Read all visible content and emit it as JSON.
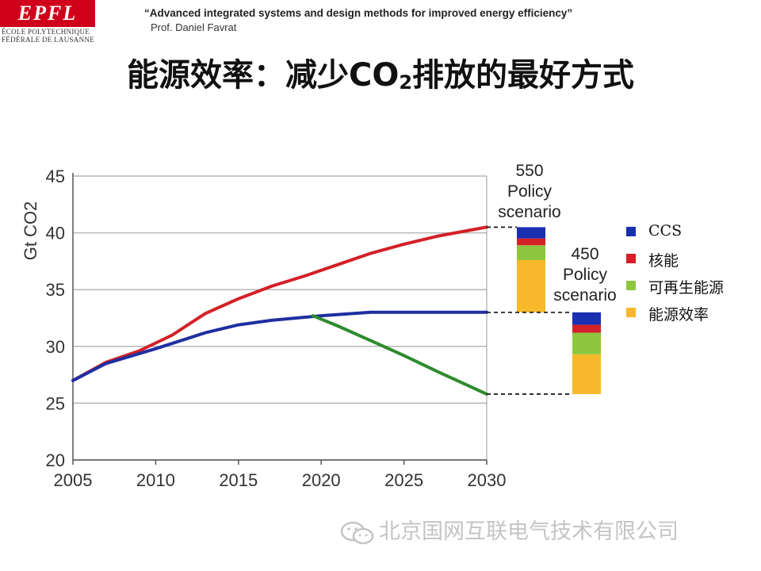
{
  "logo": {
    "text": "EPFL",
    "line1": "ÉCOLE POLYTECHNIQUE",
    "line2": "FÉDÉRALE DE LAUSANNE"
  },
  "header": {
    "quote": "“Advanced integrated systems and design methods for improved energy efficiency”",
    "author": "Prof. Daniel Favrat"
  },
  "title": {
    "before": "能源效率：减少CO",
    "subscript": "2",
    "after": "排放的最好方式"
  },
  "legend": [
    {
      "label": "CCS",
      "color": "#1a2fb0"
    },
    {
      "label": "核能",
      "color": "#d42027"
    },
    {
      "label": "可再生能源",
      "color": "#8dc63f"
    },
    {
      "label": "能源效率",
      "color": "#f7b92b"
    }
  ],
  "watermark": "北京国网互联电气技术有限公司",
  "chart_data": {
    "type": "line",
    "ylabel": "Gt CO2",
    "xlim": [
      2005,
      2030
    ],
    "ylim": [
      20,
      45
    ],
    "xticks": [
      2005,
      2010,
      2015,
      2020,
      2025,
      2030
    ],
    "yticks": [
      20,
      25,
      30,
      35,
      40,
      45
    ],
    "grid": "horizontal",
    "series": [
      {
        "color": "#d42027",
        "x": [
          2005,
          2007,
          2009,
          2011,
          2013,
          2015,
          2017,
          2019,
          2021,
          2023,
          2025,
          2027,
          2030
        ],
        "y": [
          27.0,
          28.6,
          29.6,
          31.0,
          32.9,
          34.2,
          35.3,
          36.2,
          37.2,
          38.2,
          39.0,
          39.7,
          40.5
        ]
      },
      {
        "color": "#1f2fa0",
        "x": [
          2005,
          2007,
          2010,
          2013,
          2015,
          2017,
          2020,
          2023,
          2025,
          2030
        ],
        "y": [
          27.0,
          28.5,
          29.8,
          31.2,
          31.9,
          32.3,
          32.7,
          33.0,
          33.0,
          33.0
        ]
      },
      {
        "color": "#2e8b2e",
        "x": [
          2019.5,
          2021,
          2023,
          2025,
          2027,
          2030
        ],
        "y": [
          32.7,
          31.8,
          30.5,
          29.2,
          27.8,
          25.8
        ]
      }
    ],
    "stacked_bars": [
      {
        "label_lines": [
          "550",
          "Policy",
          "scenario"
        ],
        "total": 40.5,
        "segments": [
          {
            "name": "能源效率",
            "value": 4.6,
            "color": "#f7b92b"
          },
          {
            "name": "可再生能源",
            "value": 1.3,
            "color": "#8dc63f"
          },
          {
            "name": "核能",
            "value": 0.6,
            "color": "#d42027"
          },
          {
            "name": "CCS",
            "value": 1.0,
            "color": "#1a2fb0"
          }
        ]
      },
      {
        "label_lines": [
          "450",
          "Policy",
          "scenario"
        ],
        "total": 33.0,
        "segments": [
          {
            "name": "能源效率",
            "value": 3.5,
            "color": "#f7b92b"
          },
          {
            "name": "可再生能源",
            "value": 1.9,
            "color": "#8dc63f"
          },
          {
            "name": "核能",
            "value": 0.7,
            "color": "#d42027"
          },
          {
            "name": "CCS",
            "value": 1.1,
            "color": "#1a2fb0"
          }
        ]
      }
    ]
  }
}
